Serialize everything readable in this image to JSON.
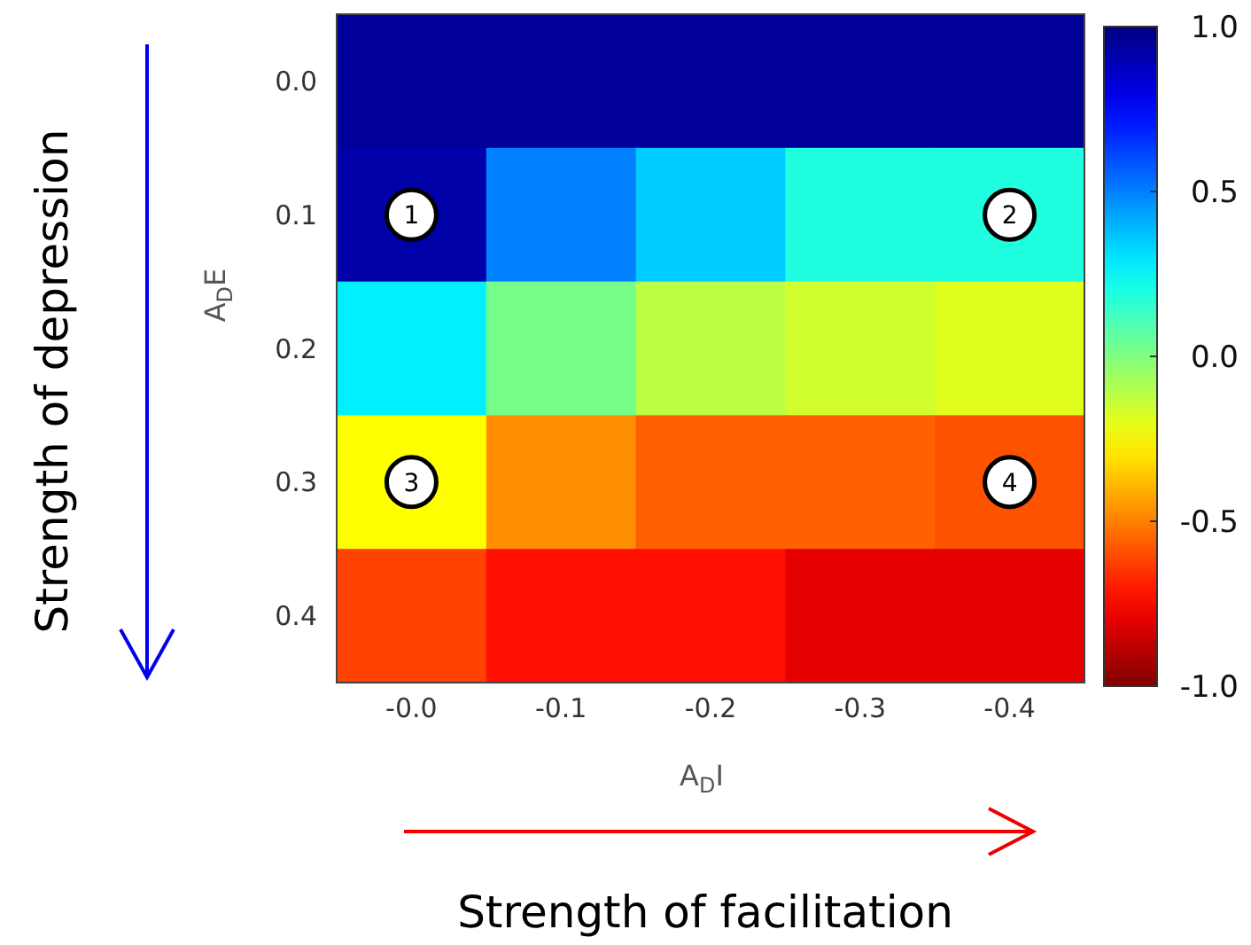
{
  "chart_data": {
    "type": "heatmap",
    "xlabel": "A$_{D}$I",
    "ylabel": "A$_{D}$E",
    "categories": [
      "-0.0",
      "-0.1",
      "-0.2",
      "-0.3",
      "-0.4"
    ],
    "y_categories": [
      "0.0",
      "0.1",
      "0.2",
      "0.3",
      "0.4"
    ],
    "cells": [
      [
        0.95,
        0.95,
        0.95,
        0.95,
        0.95
      ],
      [
        0.92,
        0.5,
        0.35,
        0.19,
        0.19
      ],
      [
        0.28,
        0.02,
        -0.12,
        -0.16,
        -0.19
      ],
      [
        -0.25,
        -0.47,
        -0.56,
        -0.56,
        -0.59
      ],
      [
        -0.62,
        -0.72,
        -0.72,
        -0.8,
        -0.8
      ]
    ],
    "clim": [
      -1,
      1
    ],
    "cticks": [
      {
        "value": -1,
        "label": "-1.0"
      },
      {
        "value": -0.5,
        "label": "-0.5"
      },
      {
        "value": 0,
        "label": "0.0"
      },
      {
        "value": 0.5,
        "label": "0.5"
      },
      {
        "value": 1,
        "label": "1.0"
      }
    ],
    "annotations": [
      {
        "text": "1",
        "x": "-0.0",
        "y": "0.1"
      },
      {
        "text": "2",
        "x": "-0.4",
        "y": "0.1"
      },
      {
        "text": "3",
        "x": "-0.0",
        "y": "0.3"
      },
      {
        "text": "4",
        "x": "-0.4",
        "y": "0.3"
      },
      "Strength of depression",
      "Strength of facilitation"
    ]
  }
}
